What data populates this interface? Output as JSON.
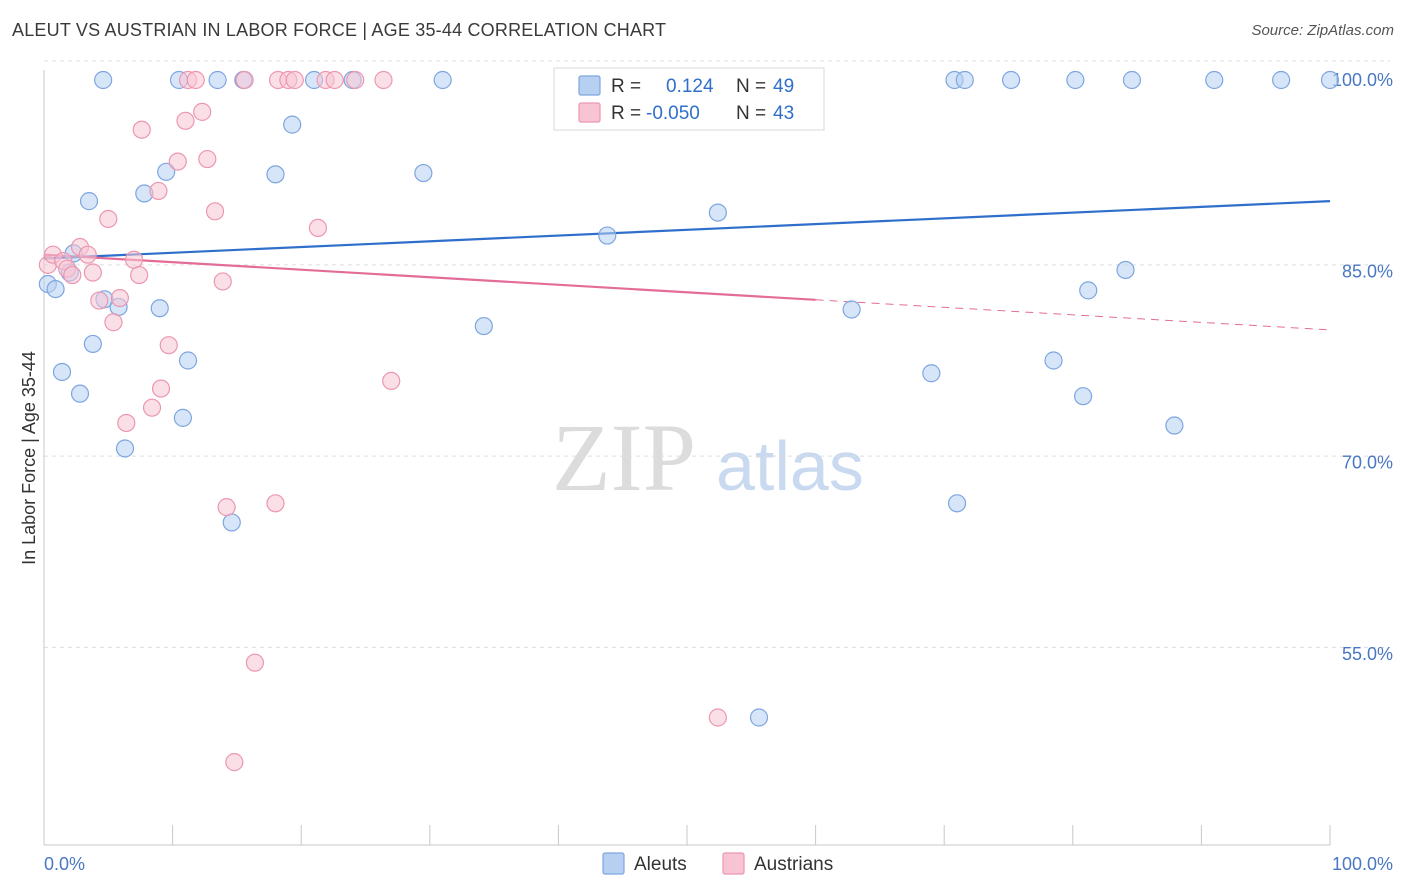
{
  "title": "ALEUT VS AUSTRIAN IN LABOR FORCE | AGE 35-44 CORRELATION CHART",
  "source": "Source: ZipAtlas.com",
  "watermark": {
    "zip": "ZIP",
    "atlas": "atlas"
  },
  "colors": {
    "aleut_fill": "#b7d0f2",
    "aleut_stroke": "#7da6df",
    "aleut_line": "#2f6fcb",
    "austrian_fill": "#f8c4d3",
    "austrian_stroke": "#eb97b0",
    "austrian_line": "#e36d98",
    "tick_text": "#4a77c4"
  },
  "legend_top": {
    "rows": [
      {
        "series": "Aleuts",
        "r_label": "R =",
        "r_value": "0.124",
        "n_label": "N =",
        "n_value": "49"
      },
      {
        "series": "Austrians",
        "r_label": "R =",
        "r_value": "-0.050",
        "n_label": "N =",
        "n_value": "43"
      }
    ]
  },
  "legend_bottom": {
    "items": [
      "Aleuts",
      "Austrians"
    ]
  },
  "chart_data": {
    "type": "scatter",
    "title": "ALEUT VS AUSTRIAN IN LABOR FORCE | AGE 35-44 CORRELATION CHART",
    "xlabel": "",
    "ylabel": "In Labor Force | Age 35-44",
    "xlim": [
      0,
      100
    ],
    "ylim": [
      40,
      101.5
    ],
    "x_tick_labels": [
      {
        "value": 0,
        "label": "0.0%"
      },
      {
        "value": 100,
        "label": "100.0%"
      }
    ],
    "y_tick_labels": [
      {
        "value": 100,
        "label": "100.0%"
      },
      {
        "value": 85,
        "label": "85.0%"
      },
      {
        "value": 70,
        "label": "70.0%"
      },
      {
        "value": 55,
        "label": "55.0%"
      }
    ],
    "y_gridlines": [
      101.5,
      85.5,
      70.5,
      55.5
    ],
    "series": [
      {
        "name": "Aleuts",
        "r": 0.124,
        "n": 49,
        "trend": {
          "x0": 0,
          "y0": 86.0,
          "x1": 100,
          "y1": 90.5,
          "dashed_from": null
        },
        "points": [
          [
            0.3,
            84.0
          ],
          [
            0.9,
            83.6
          ],
          [
            1.4,
            77.1
          ],
          [
            2.0,
            84.9
          ],
          [
            2.3,
            86.4
          ],
          [
            2.8,
            75.4
          ],
          [
            3.5,
            90.5
          ],
          [
            3.8,
            79.3
          ],
          [
            4.6,
            100
          ],
          [
            4.7,
            82.8
          ],
          [
            5.8,
            82.2
          ],
          [
            6.3,
            71.1
          ],
          [
            7.8,
            91.1
          ],
          [
            9.0,
            82.1
          ],
          [
            9.5,
            92.8
          ],
          [
            10.5,
            100
          ],
          [
            10.8,
            73.5
          ],
          [
            11.2,
            78.0
          ],
          [
            13.5,
            100
          ],
          [
            14.6,
            65.3
          ],
          [
            15.5,
            100
          ],
          [
            18.0,
            92.6
          ],
          [
            19.3,
            96.5
          ],
          [
            21.0,
            100
          ],
          [
            24.0,
            100
          ],
          [
            29.5,
            92.7
          ],
          [
            31.0,
            100
          ],
          [
            34.2,
            80.7
          ],
          [
            43.8,
            87.8
          ],
          [
            52.4,
            89.6
          ],
          [
            55.6,
            50.0
          ],
          [
            56.7,
            100
          ],
          [
            59.0,
            100
          ],
          [
            62.8,
            82.0
          ],
          [
            69.0,
            77.0
          ],
          [
            71.0,
            66.8
          ],
          [
            70.8,
            100
          ],
          [
            71.6,
            100
          ],
          [
            75.2,
            100
          ],
          [
            78.5,
            78.0
          ],
          [
            80.2,
            100
          ],
          [
            80.8,
            75.2
          ],
          [
            81.2,
            83.5
          ],
          [
            84.1,
            85.1
          ],
          [
            84.6,
            100
          ],
          [
            87.9,
            72.9
          ],
          [
            91.0,
            100
          ],
          [
            96.2,
            100
          ],
          [
            100,
            100
          ]
        ]
      },
      {
        "name": "Austrians",
        "r": -0.05,
        "n": 43,
        "trend": {
          "x0": 0,
          "y0": 86.3,
          "x1": 100,
          "y1": 80.4,
          "dashed_from": 60
        },
        "points": [
          [
            0.3,
            85.5
          ],
          [
            0.7,
            86.3
          ],
          [
            1.5,
            85.8
          ],
          [
            1.8,
            85.2
          ],
          [
            2.2,
            84.7
          ],
          [
            2.8,
            86.9
          ],
          [
            3.4,
            86.3
          ],
          [
            3.8,
            84.9
          ],
          [
            4.3,
            82.7
          ],
          [
            5.0,
            89.1
          ],
          [
            5.4,
            81.0
          ],
          [
            5.9,
            82.9
          ],
          [
            6.4,
            73.1
          ],
          [
            7.0,
            85.9
          ],
          [
            7.4,
            84.7
          ],
          [
            7.6,
            96.1
          ],
          [
            8.4,
            74.3
          ],
          [
            8.9,
            91.3
          ],
          [
            9.1,
            75.8
          ],
          [
            9.7,
            79.2
          ],
          [
            10.4,
            93.6
          ],
          [
            11.0,
            96.8
          ],
          [
            11.2,
            100
          ],
          [
            11.8,
            100
          ],
          [
            12.3,
            97.5
          ],
          [
            12.7,
            93.8
          ],
          [
            13.3,
            89.7
          ],
          [
            13.9,
            84.2
          ],
          [
            14.2,
            66.5
          ],
          [
            14.8,
            46.5
          ],
          [
            15.6,
            100
          ],
          [
            16.4,
            54.3
          ],
          [
            18.0,
            66.8
          ],
          [
            18.2,
            100
          ],
          [
            19.0,
            100
          ],
          [
            19.5,
            100
          ],
          [
            21.3,
            88.4
          ],
          [
            21.9,
            100
          ],
          [
            22.6,
            100
          ],
          [
            24.2,
            100
          ],
          [
            26.4,
            100
          ],
          [
            27.0,
            76.4
          ],
          [
            52.4,
            50.0
          ]
        ]
      }
    ]
  }
}
